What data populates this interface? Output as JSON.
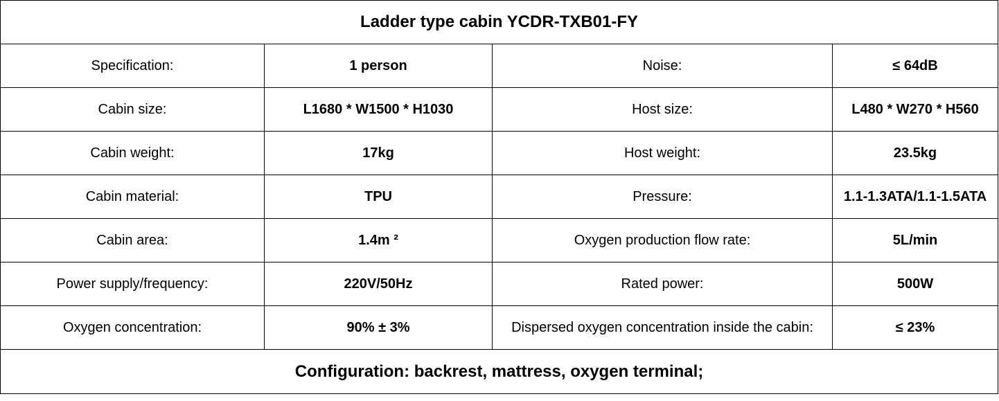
{
  "title": "Ladder type cabin YCDR-TXB01-FY",
  "rows": [
    {
      "label1": "Specification:",
      "value1": "1 person",
      "label2": "Noise:",
      "value2": "≤ 64dB"
    },
    {
      "label1": "Cabin size:",
      "value1": "L1680 * W1500 * H1030",
      "label2": "Host size:",
      "value2": "L480 * W270 * H560"
    },
    {
      "label1": "Cabin weight:",
      "value1": "17kg",
      "label2": "Host weight:",
      "value2": "23.5kg"
    },
    {
      "label1": "Cabin material:",
      "value1": "TPU",
      "label2": "Pressure:",
      "value2": "1.1-1.3ATA/1.1-1.5ATA"
    },
    {
      "label1": "Cabin area:",
      "value1": "1.4m ²",
      "label2": "Oxygen production flow rate:",
      "value2": "5L/min"
    },
    {
      "label1": "Power supply/frequency:",
      "value1": "220V/50Hz",
      "label2": "Rated power:",
      "value2": "500W"
    },
    {
      "label1": "Oxygen concentration:",
      "value1": "90% ± 3%",
      "label2": "Dispersed oxygen concentration inside the cabin:",
      "value2": "≤ 23%"
    }
  ],
  "footer": "Configuration: backrest, mattress, oxygen terminal;"
}
